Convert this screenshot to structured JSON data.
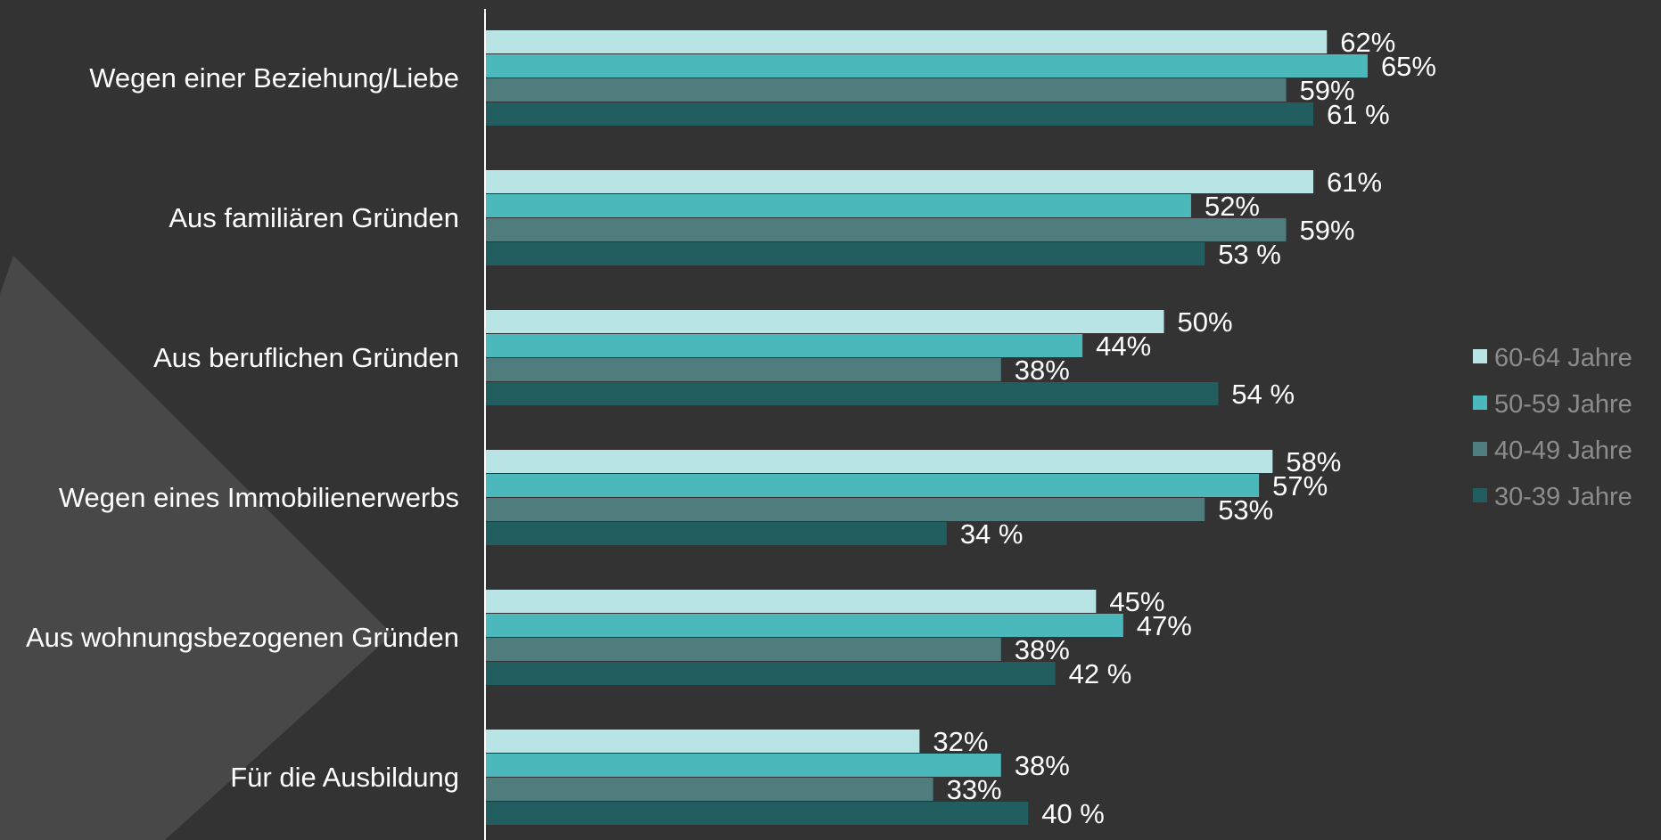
{
  "chart_data": {
    "type": "bar",
    "orientation": "horizontal",
    "categories": [
      "Wegen einer Beziehung/Liebe",
      "Aus familiären Gründen",
      "Aus beruflichen Gründen",
      "Wegen eines Immobilienerwerbs",
      "Aus wohnungsbezogenen Gründen",
      "Für die Ausbildung"
    ],
    "series": [
      {
        "name": "60-64 Jahre",
        "color": "#b8e4e5",
        "values": [
          62,
          61,
          50,
          58,
          45,
          32
        ],
        "labels": [
          "62%",
          "61%",
          "50%",
          "58%",
          "45%",
          "32%"
        ]
      },
      {
        "name": "50-59 Jahre",
        "color": "#4bb8bc",
        "values": [
          65,
          52,
          44,
          57,
          47,
          38
        ],
        "labels": [
          "65%",
          "52%",
          "44%",
          "57%",
          "47%",
          "38%"
        ]
      },
      {
        "name": "40-49 Jahre",
        "color": "#4f7c7d",
        "values": [
          59,
          59,
          38,
          53,
          38,
          33
        ],
        "labels": [
          "59%",
          "59%",
          "38%",
          "53%",
          "38%",
          "33%"
        ]
      },
      {
        "name": "30-39 Jahre",
        "color": "#225e60",
        "values": [
          61,
          53,
          54,
          34,
          42,
          40
        ],
        "labels": [
          "61 %",
          "53 %",
          "54 %",
          "34 %",
          "42 %",
          "40 %"
        ]
      }
    ],
    "xlim": [
      0,
      100
    ],
    "grid": false,
    "legend_position": "right",
    "title": "",
    "xlabel": "",
    "ylabel": ""
  },
  "colors": {
    "background": "#333333",
    "decor_triangle": "#484848",
    "axis_line": "#ffffff",
    "text": "#ffffff",
    "legend_text": "#8c8c8c"
  }
}
